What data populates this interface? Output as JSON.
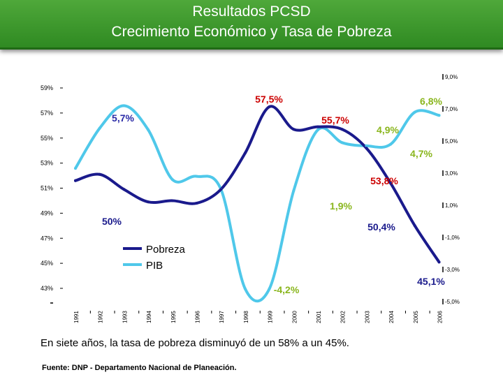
{
  "header": {
    "title": "Resultados PCSD",
    "subtitle": "Crecimiento Económico y Tasa de Pobreza"
  },
  "chart_data": {
    "type": "line",
    "title": "Resultados PCSD — Crecimiento Económico y Tasa de Pobreza",
    "categories": [
      "1991",
      "1992",
      "1993",
      "1994",
      "1995",
      "1996",
      "1997",
      "1998",
      "1999",
      "2000",
      "2001",
      "2002",
      "2003",
      "2004",
      "2005",
      "2006"
    ],
    "y_left": {
      "label": "Pobreza",
      "ylim": [
        43,
        59
      ],
      "ticks": [
        "43%",
        "45%",
        "47%",
        "49%",
        "51%",
        "53%",
        "55%",
        "57%",
        "59%"
      ]
    },
    "y_right": {
      "label": "PIB",
      "ylim": [
        -5,
        9
      ],
      "ticks": [
        "-5,0%",
        "-3,0%",
        "-1,0%",
        "1,0%",
        "3,0%",
        "5,0%",
        "7,0%",
        "9,0%"
      ]
    },
    "series": [
      {
        "name": "Pobreza",
        "axis": "left",
        "color": "#1a1a8c",
        "values": [
          51.6,
          52.1,
          50.9,
          49.9,
          50.0,
          49.8,
          50.9,
          53.8,
          57.5,
          55.7,
          55.9,
          55.7,
          54.2,
          51.4,
          48.0,
          45.1
        ]
      },
      {
        "name": "PIB",
        "axis": "right",
        "color": "#4fc8ea",
        "values": [
          3.3,
          5.8,
          7.2,
          5.7,
          2.6,
          2.8,
          2.0,
          -4.2,
          -4.2,
          1.9,
          5.7,
          4.9,
          4.7,
          4.8,
          6.8,
          6.6
        ]
      }
    ],
    "annotations": [
      {
        "text": "57,5%",
        "series": "Pobreza",
        "color": "#cc0000"
      },
      {
        "text": "55,7%",
        "series": "Pobreza",
        "color": "#cc0000"
      },
      {
        "text": "53,8%",
        "series": "Pobreza",
        "color": "#cc0000"
      },
      {
        "text": "50%",
        "series": "Pobreza",
        "color": "#1a1a8c"
      },
      {
        "text": "50,4%",
        "series": "Pobreza",
        "color": "#1a1a8c"
      },
      {
        "text": "45,1%",
        "series": "Pobreza",
        "color": "#1a1a8c"
      },
      {
        "text": "5,7%",
        "series": "PIB",
        "color": "#2a2aa6"
      },
      {
        "text": "6,8%",
        "series": "PIB",
        "color": "#8ab61e"
      },
      {
        "text": "4,9%",
        "series": "PIB",
        "color": "#8ab61e"
      },
      {
        "text": "4,7%",
        "series": "PIB",
        "color": "#8ab61e"
      },
      {
        "text": "1,9%",
        "series": "PIB",
        "color": "#8ab61e"
      },
      {
        "text": "-4,2%",
        "series": "PIB",
        "color": "#8ab61e"
      }
    ],
    "legend": {
      "position": "center-left",
      "items": [
        "Pobreza",
        "PIB"
      ]
    },
    "grid": false
  },
  "footer": {
    "summary": "En siete años, la tasa de pobreza disminuyó de un 58% a un 45%.",
    "source": "Fuente: DNP - Departamento Nacional de Planeación."
  }
}
